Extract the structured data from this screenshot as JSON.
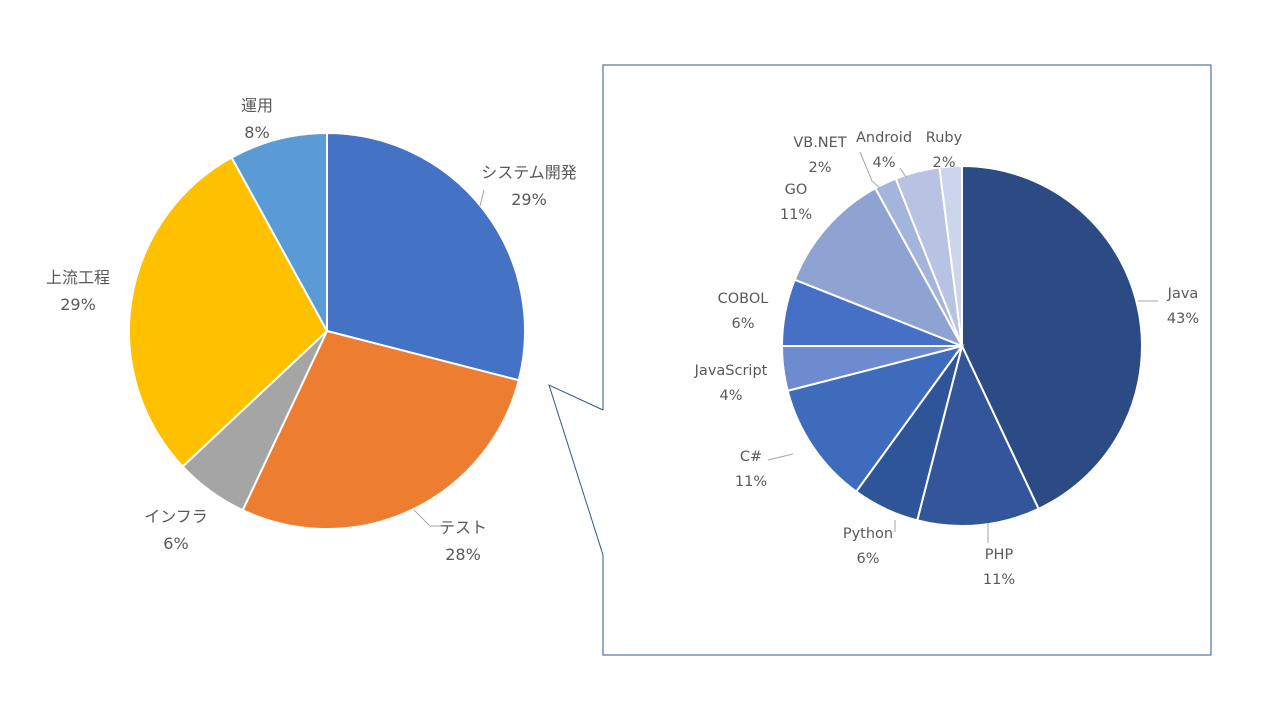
{
  "chart_data": [
    {
      "type": "pie",
      "title": "",
      "categories": [
        "システム開発",
        "テスト",
        "インフラ",
        "上流工程",
        "運用"
      ],
      "values": [
        29,
        28,
        6,
        29,
        8
      ],
      "value_labels": [
        "29%",
        "28%",
        "6%",
        "29%",
        "8%"
      ],
      "colors": [
        "#4472C4",
        "#ED7D31",
        "#A5A5A5",
        "#FFC000",
        "#5B9BD5"
      ],
      "legend": "none",
      "start_angle_deg": 0
    },
    {
      "type": "pie",
      "title": "",
      "categories": [
        "Java",
        "PHP",
        "Python",
        "C#",
        "JavaScript",
        "COBOL",
        "GO",
        "VB.NET",
        "Android",
        "Ruby"
      ],
      "values": [
        43,
        11,
        6,
        11,
        4,
        6,
        11,
        2,
        4,
        2
      ],
      "value_labels": [
        "43%",
        "11%",
        "6%",
        "11%",
        "4%",
        "6%",
        "11%",
        "2%",
        "4%",
        "2%"
      ],
      "colors": [
        "#2C4A84",
        "#33569A",
        "#2E5597",
        "#3F6BBD",
        "#6D8BCE",
        "#4670C5",
        "#8FA3D3",
        "#A5B4DB",
        "#B8C3E3",
        "#CDD5EC"
      ],
      "legend": "none",
      "detail_of": "システム開発"
    }
  ]
}
